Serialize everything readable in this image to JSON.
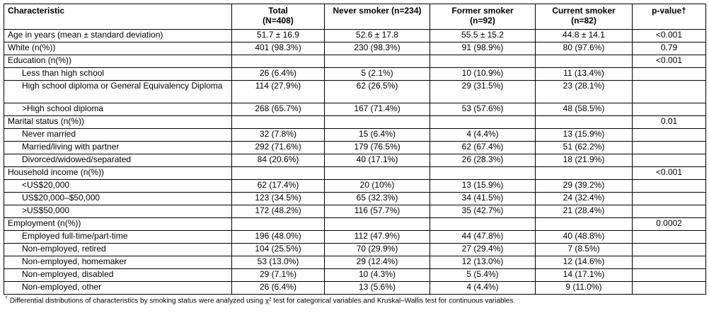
{
  "headers": [
    {
      "line1": "Characteristic",
      "line2": ""
    },
    {
      "line1": "Total",
      "line2": "(N=408)"
    },
    {
      "line1": "Never smoker (n=234)",
      "line2": ""
    },
    {
      "line1": "Former smoker",
      "line2": "(n=92)"
    },
    {
      "line1": "Current smoker",
      "line2": "(n=82)"
    },
    {
      "line1": "p-value†",
      "line2": ""
    }
  ],
  "rows": [
    {
      "label": "Age in years (mean ± standard deviation)",
      "indent": false,
      "cells": [
        "51.7 ± 16.9",
        "52.6 ± 17.8",
        "55.5 ± 15.2",
        "44.8 ± 14.1",
        "<0.001"
      ]
    },
    {
      "label": "White (n(%))",
      "indent": false,
      "cells": [
        "401 (98.3%)",
        "230 (98.3%)",
        "91 (98.9%)",
        "80 (97.6%)",
        "0.79"
      ]
    },
    {
      "label": "Education (n(%))",
      "indent": false,
      "cells": [
        "",
        "",
        "",
        "",
        "<0.001"
      ]
    },
    {
      "label": "Less than high school",
      "indent": true,
      "cells": [
        "26 (6.4%)",
        "5 (2.1%)",
        "10 (10.9%)",
        "11 (13.4%)",
        ""
      ]
    },
    {
      "label": "High school diploma or General Equivalency Diploma",
      "indent": true,
      "tall": true,
      "cells": [
        "114 (27.9%)",
        "62 (26.5%)",
        "29 (31.5%)",
        "23 (28.1%)",
        ""
      ]
    },
    {
      "label": ">High school diploma",
      "indent": true,
      "cells": [
        "268 (65.7%)",
        "167 (71.4%)",
        "53 (57.6%)",
        "48 (58.5%)",
        ""
      ]
    },
    {
      "label": "Marital status (n(%))",
      "indent": false,
      "cells": [
        "",
        "",
        "",
        "",
        "0.01"
      ]
    },
    {
      "label": "Never married",
      "indent": true,
      "cells": [
        "32 (7.8%)",
        "15 (6.4%)",
        "4 (4.4%)",
        "13 (15.9%)",
        ""
      ]
    },
    {
      "label": "Married/living with partner",
      "indent": true,
      "cells": [
        "292 (71.6%)",
        "179 (76.5%)",
        "62 (67.4%)",
        "51 (62.2%)",
        ""
      ]
    },
    {
      "label": "Divorced/widowed/separated",
      "indent": true,
      "cells": [
        "84 (20.6%)",
        "40 (17.1%)",
        "26 (28.3%)",
        "18 (21.9%)",
        ""
      ]
    },
    {
      "label": "Household income (n(%))",
      "indent": false,
      "cells": [
        "",
        "",
        "",
        "",
        "<0.001"
      ]
    },
    {
      "label": "<US$20,000",
      "indent": true,
      "cells": [
        "62 (17.4%)",
        "20 (10%)",
        "13 (15.9%)",
        "29 (39.2%)",
        ""
      ]
    },
    {
      "label": "US$20,000–$50,000",
      "indent": true,
      "cells": [
        "123 (34.5%)",
        "65 (32.3%)",
        "34 (41.5%)",
        "24 (32.4%)",
        ""
      ]
    },
    {
      "label": ">US$50,000",
      "indent": true,
      "cells": [
        "172 (48.2%)",
        "116 (57.7%)",
        "35 (42.7%)",
        "21 (28.4%)",
        ""
      ]
    },
    {
      "label": "Employment (n(%))",
      "indent": false,
      "cells": [
        "",
        "",
        "",
        "",
        "0.0002"
      ]
    },
    {
      "label": "Employed full-time/part-time",
      "indent": true,
      "cells": [
        "196 (48.0%)",
        "112 (47.9%)",
        "44 (47.8%)",
        "40 (48.8%)",
        ""
      ]
    },
    {
      "label": "Non-employed, retired",
      "indent": true,
      "cells": [
        "104 (25.5%)",
        "70 (29.9%)",
        "27 (29.4%)",
        "7 (8.5%)",
        ""
      ]
    },
    {
      "label": "Non-employed, homemaker",
      "indent": true,
      "cells": [
        "53 (13.0%)",
        "29 (12.4%)",
        "12 (13.0%)",
        "12 (14.6%)",
        ""
      ]
    },
    {
      "label": "Non-employed, disabled",
      "indent": true,
      "cells": [
        "29 (7.1%)",
        "10 (4.3%)",
        "5 (5.4%)",
        "14 (17.1%)",
        ""
      ]
    },
    {
      "label": "Non-employed, other",
      "indent": true,
      "cells": [
        "26 (6.4%)",
        "13 (5.6%)",
        "4 (4.4%)",
        "9 (11.0%)",
        ""
      ]
    }
  ],
  "footnote": {
    "mark": "†",
    "text": "Differential distributions of characteristics by smoking status were analyzed using χ² test for categorical variables and Kruskal–Wallis test for continuous variables."
  }
}
